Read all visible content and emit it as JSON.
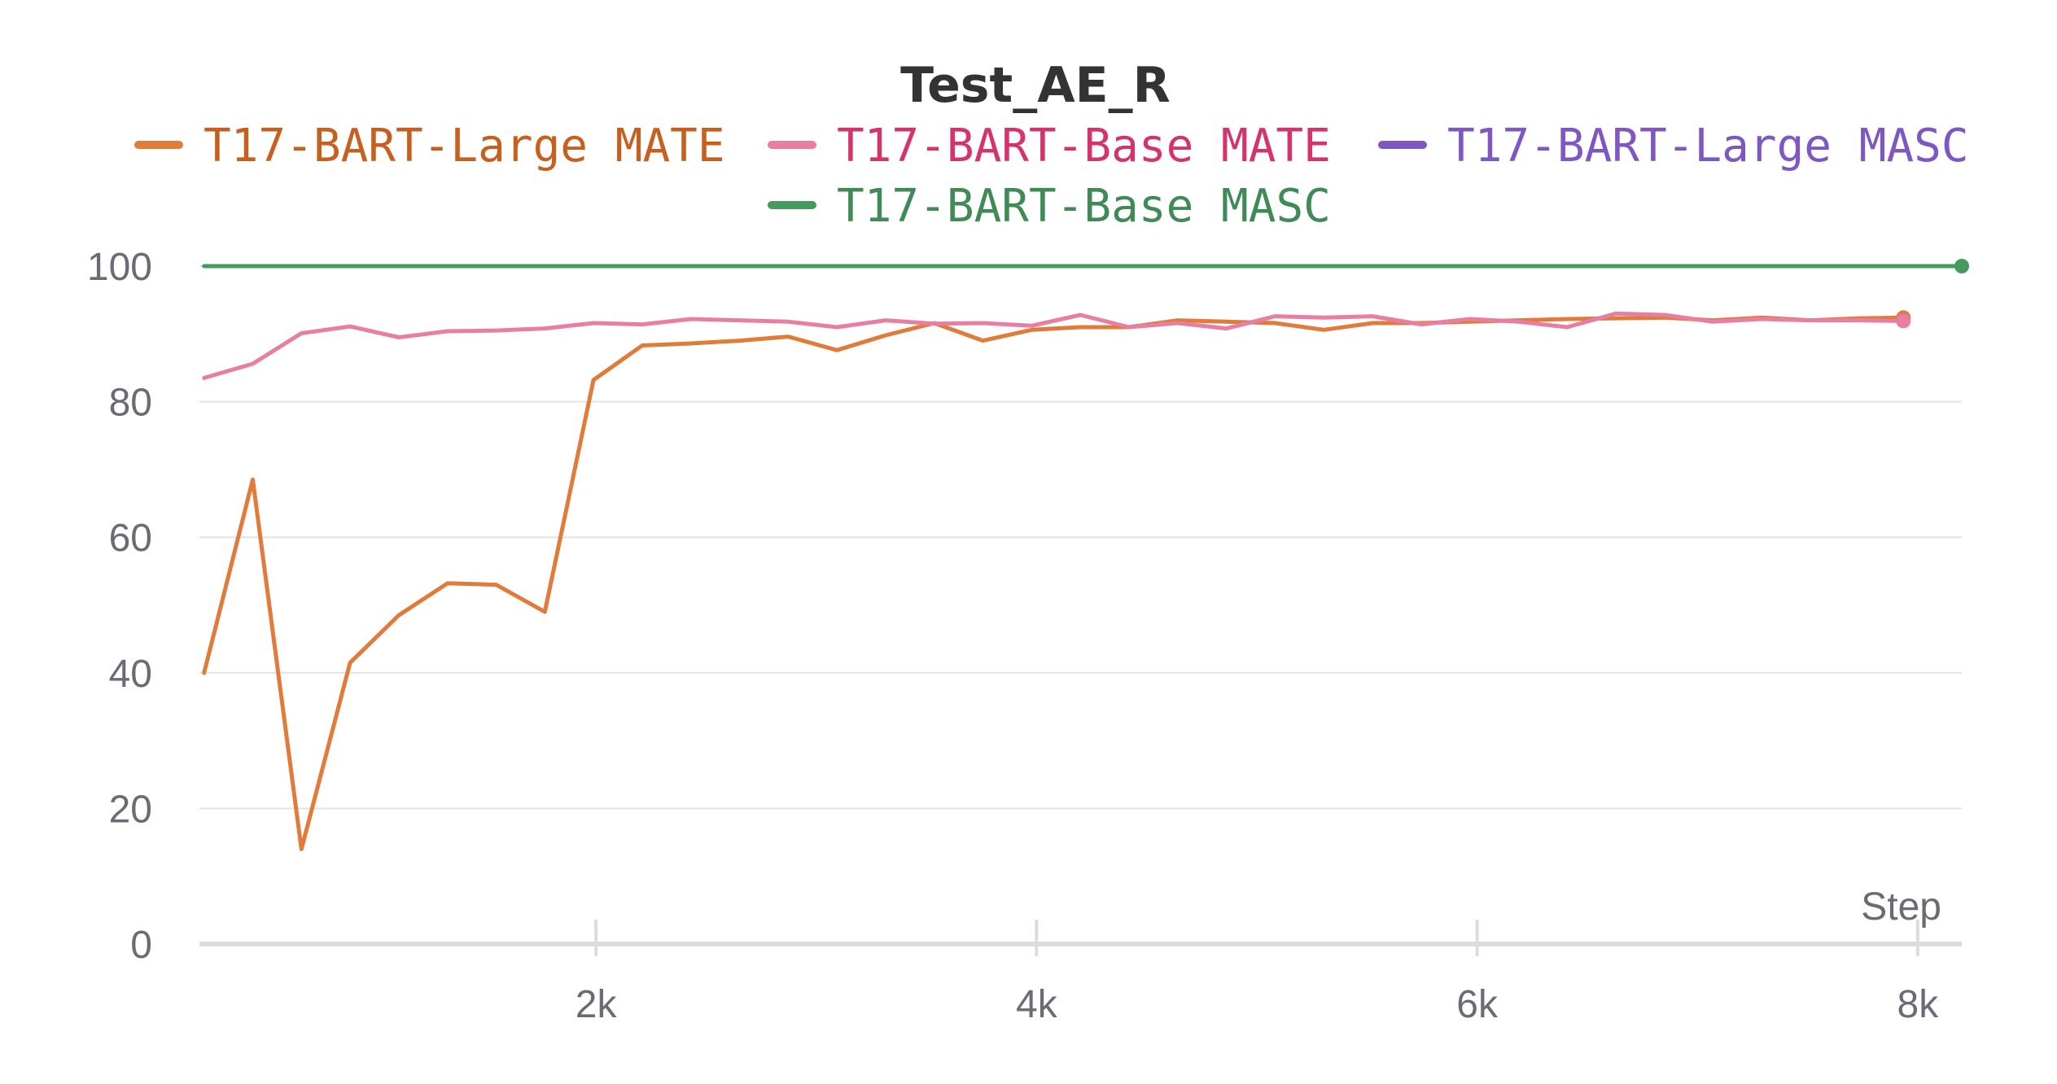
{
  "chart_data": {
    "type": "line",
    "title": "Test_AE_R",
    "xlabel": "Step",
    "ylabel": "",
    "xlim": [
      200,
      8200
    ],
    "ylim": [
      0,
      100
    ],
    "x_ticks": [
      {
        "value": 2000,
        "label": "2k"
      },
      {
        "value": 4000,
        "label": "4k"
      },
      {
        "value": 6000,
        "label": "6k"
      },
      {
        "value": 8000,
        "label": "8k"
      }
    ],
    "y_ticks": [
      {
        "value": 0,
        "label": "0"
      },
      {
        "value": 20,
        "label": "20"
      },
      {
        "value": 40,
        "label": "40"
      },
      {
        "value": 60,
        "label": "60"
      },
      {
        "value": 80,
        "label": "80"
      },
      {
        "value": 100,
        "label": "100"
      }
    ],
    "grid": true,
    "legend_position": "top",
    "series": [
      {
        "name": "T17-BART-Large MATE",
        "color": "#e07b39",
        "text_color": "#c75f1e",
        "x": [
          221,
          442,
          663,
          884,
          1105,
          1326,
          1547,
          1768,
          1989,
          2210,
          2431,
          2652,
          2873,
          3094,
          3315,
          3536,
          3757,
          3978,
          4199,
          4420,
          4641,
          4862,
          5083,
          5304,
          5525,
          5746,
          5967,
          6188,
          6409,
          6630,
          6851,
          7072,
          7293,
          7514,
          7735,
          7935
        ],
        "values": [
          40,
          68.5,
          14,
          41.5,
          48.5,
          53.2,
          53,
          49,
          83.2,
          88.3,
          88.6,
          89,
          89.6,
          87.6,
          89.8,
          91.6,
          89,
          90.6,
          91,
          91,
          92,
          91.8,
          91.6,
          90.6,
          91.6,
          91.6,
          91.8,
          92,
          92.2,
          92.3,
          92.4,
          92,
          92.4,
          92,
          92.3,
          92.4
        ]
      },
      {
        "name": "T17-BART-Base MATE",
        "color": "#e87fa3",
        "text_color": "#d6336c",
        "x": [
          221,
          442,
          663,
          884,
          1105,
          1326,
          1547,
          1768,
          1989,
          2210,
          2431,
          2652,
          2873,
          3094,
          3315,
          3536,
          3757,
          3978,
          4199,
          4420,
          4641,
          4862,
          5083,
          5304,
          5525,
          5746,
          5967,
          6188,
          6409,
          6630,
          6851,
          7072,
          7293,
          7514,
          7735,
          7935
        ],
        "values": [
          83.5,
          85.6,
          90.1,
          91.1,
          89.5,
          90.4,
          90.5,
          90.8,
          91.6,
          91.4,
          92.2,
          92,
          91.8,
          91,
          92,
          91.5,
          91.6,
          91.2,
          92.8,
          91,
          91.6,
          90.8,
          92.6,
          92.4,
          92.6,
          91.4,
          92.2,
          91.8,
          91,
          93,
          92.8,
          91.8,
          92.2,
          92,
          92,
          91.9
        ]
      },
      {
        "name": "T17-BART-Large MASC",
        "color": "#7e57c2",
        "text_color": "#7e57c2",
        "x": [],
        "values": []
      },
      {
        "name": "T17-BART-Base MASC",
        "color": "#479a5f",
        "text_color": "#3f8a55",
        "x": [
          221,
          8200
        ],
        "values": [
          100,
          100
        ]
      }
    ]
  }
}
